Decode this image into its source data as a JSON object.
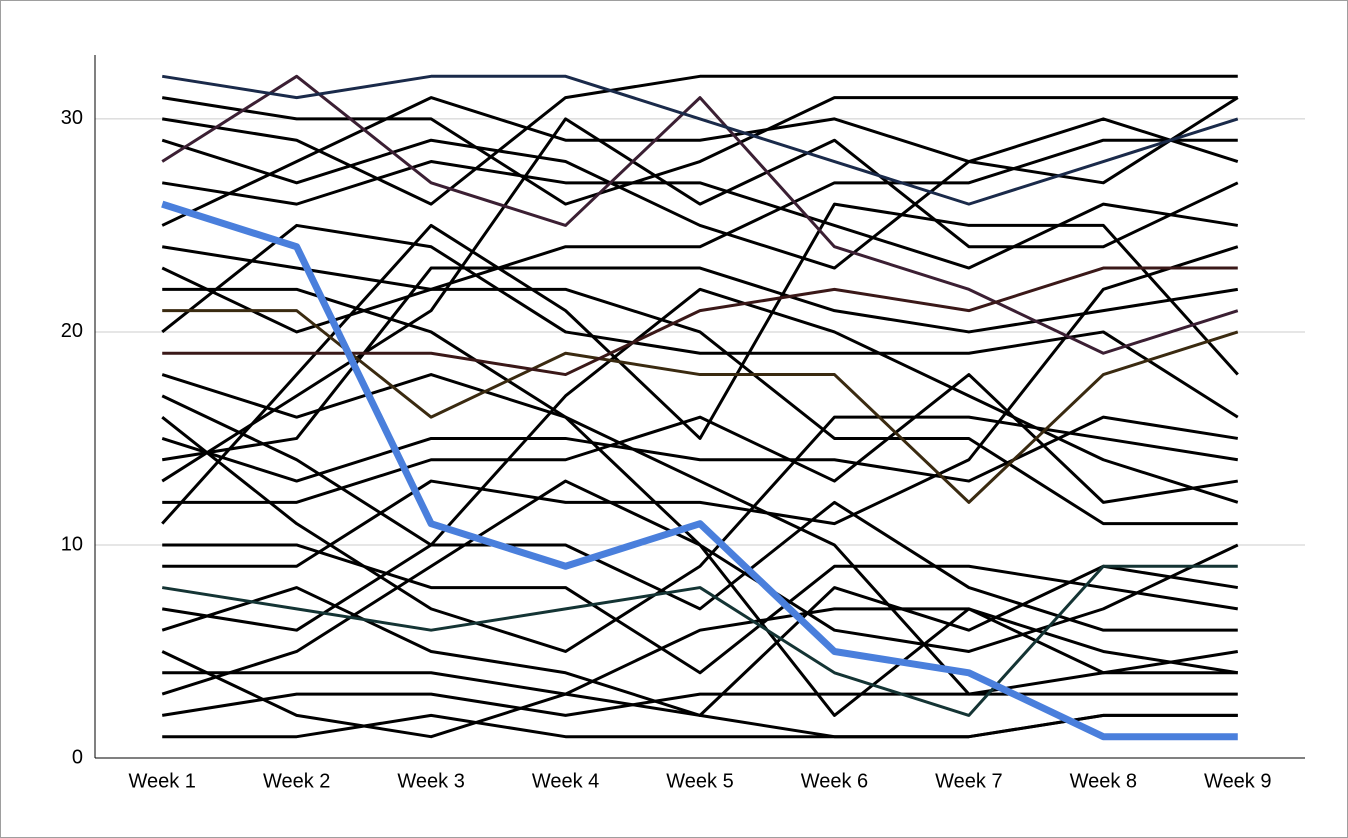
{
  "chart_data": {
    "type": "line",
    "categories": [
      "Week 1",
      "Week 2",
      "Week 3",
      "Week 4",
      "Week 5",
      "Week 6",
      "Week 7",
      "Week 8",
      "Week 9"
    ],
    "ylim": [
      0,
      33
    ],
    "yticks": [
      0,
      10,
      20,
      30
    ],
    "grid": true,
    "series": [
      {
        "color": "#000000",
        "values": [
          1,
          1,
          2,
          1,
          1,
          1,
          1,
          2,
          2
        ]
      },
      {
        "color": "#000000",
        "values": [
          2,
          3,
          3,
          2,
          3,
          3,
          3,
          3,
          3
        ]
      },
      {
        "color": "#000000",
        "values": [
          3,
          5,
          9,
          13,
          10,
          2,
          7,
          5,
          4
        ]
      },
      {
        "color": "#000000",
        "values": [
          4,
          4,
          4,
          3,
          2,
          1,
          1,
          2,
          2
        ]
      },
      {
        "color": "#000000",
        "values": [
          5,
          2,
          1,
          3,
          6,
          7,
          7,
          4,
          5
        ]
      },
      {
        "color": "#000000",
        "values": [
          6,
          8,
          5,
          4,
          2,
          8,
          6,
          9,
          8
        ]
      },
      {
        "color": "#000000",
        "values": [
          7,
          6,
          10,
          10,
          7,
          12,
          8,
          6,
          6
        ]
      },
      {
        "color": "#000000",
        "values": [
          9,
          9,
          13,
          12,
          12,
          11,
          14,
          22,
          24
        ]
      },
      {
        "color": "#000000",
        "values": [
          10,
          10,
          8,
          8,
          4,
          9,
          9,
          8,
          7
        ]
      },
      {
        "color": "#000000",
        "values": [
          11,
          18,
          25,
          21,
          15,
          26,
          25,
          25,
          18
        ]
      },
      {
        "color": "#000000",
        "values": [
          12,
          12,
          14,
          14,
          16,
          13,
          18,
          12,
          13
        ]
      },
      {
        "color": "#000000",
        "values": [
          13,
          17,
          21,
          30,
          26,
          29,
          24,
          24,
          27
        ]
      },
      {
        "color": "#000000",
        "values": [
          14,
          15,
          23,
          23,
          23,
          21,
          20,
          21,
          22
        ]
      },
      {
        "color": "#000000",
        "values": [
          15,
          13,
          15,
          15,
          14,
          14,
          13,
          16,
          15
        ]
      },
      {
        "color": "#000000",
        "values": [
          16,
          11,
          7,
          5,
          9,
          16,
          16,
          15,
          14
        ]
      },
      {
        "color": "#000000",
        "values": [
          17,
          14,
          10,
          17,
          22,
          20,
          17,
          14,
          12
        ]
      },
      {
        "color": "#000000",
        "values": [
          18,
          16,
          18,
          16,
          13,
          10,
          3,
          4,
          4
        ]
      },
      {
        "color": "#000000",
        "values": [
          20,
          25,
          24,
          20,
          19,
          19,
          19,
          20,
          16
        ]
      },
      {
        "color": "#000000",
        "values": [
          22,
          22,
          20,
          16,
          10,
          6,
          5,
          7,
          10
        ]
      },
      {
        "color": "#000000",
        "values": [
          23,
          20,
          22,
          24,
          24,
          27,
          27,
          29,
          29
        ]
      },
      {
        "color": "#000000",
        "values": [
          24,
          23,
          22,
          22,
          20,
          15,
          15,
          11,
          11
        ]
      },
      {
        "color": "#000000",
        "values": [
          25,
          28,
          31,
          29,
          29,
          30,
          28,
          27,
          31
        ]
      },
      {
        "color": "#000000",
        "values": [
          27,
          26,
          28,
          27,
          27,
          25,
          23,
          26,
          25
        ]
      },
      {
        "color": "#000000",
        "values": [
          29,
          27,
          29,
          28,
          25,
          23,
          28,
          30,
          28
        ]
      },
      {
        "color": "#000000",
        "values": [
          30,
          29,
          26,
          31,
          32,
          32,
          32,
          32,
          32
        ]
      },
      {
        "color": "#000000",
        "values": [
          31,
          30,
          30,
          26,
          28,
          31,
          31,
          31,
          31
        ]
      },
      {
        "color": "#3b1f33",
        "values": [
          28,
          32,
          27,
          25,
          31,
          24,
          22,
          19,
          21
        ]
      },
      {
        "color": "#1a2a4a",
        "values": [
          32,
          31,
          32,
          32,
          30,
          28,
          26,
          28,
          30
        ]
      },
      {
        "color": "#3a2a10",
        "values": [
          21,
          21,
          16,
          19,
          18,
          18,
          12,
          18,
          20
        ]
      },
      {
        "color": "#3a1818",
        "values": [
          19,
          19,
          19,
          18,
          21,
          22,
          21,
          23,
          23
        ]
      },
      {
        "color": "#143434",
        "values": [
          8,
          7,
          6,
          7,
          8,
          4,
          2,
          9,
          9
        ]
      },
      {
        "color": "#4a7fdc",
        "values": [
          26,
          24,
          11,
          9,
          11,
          5,
          4,
          1,
          1
        ]
      }
    ]
  }
}
